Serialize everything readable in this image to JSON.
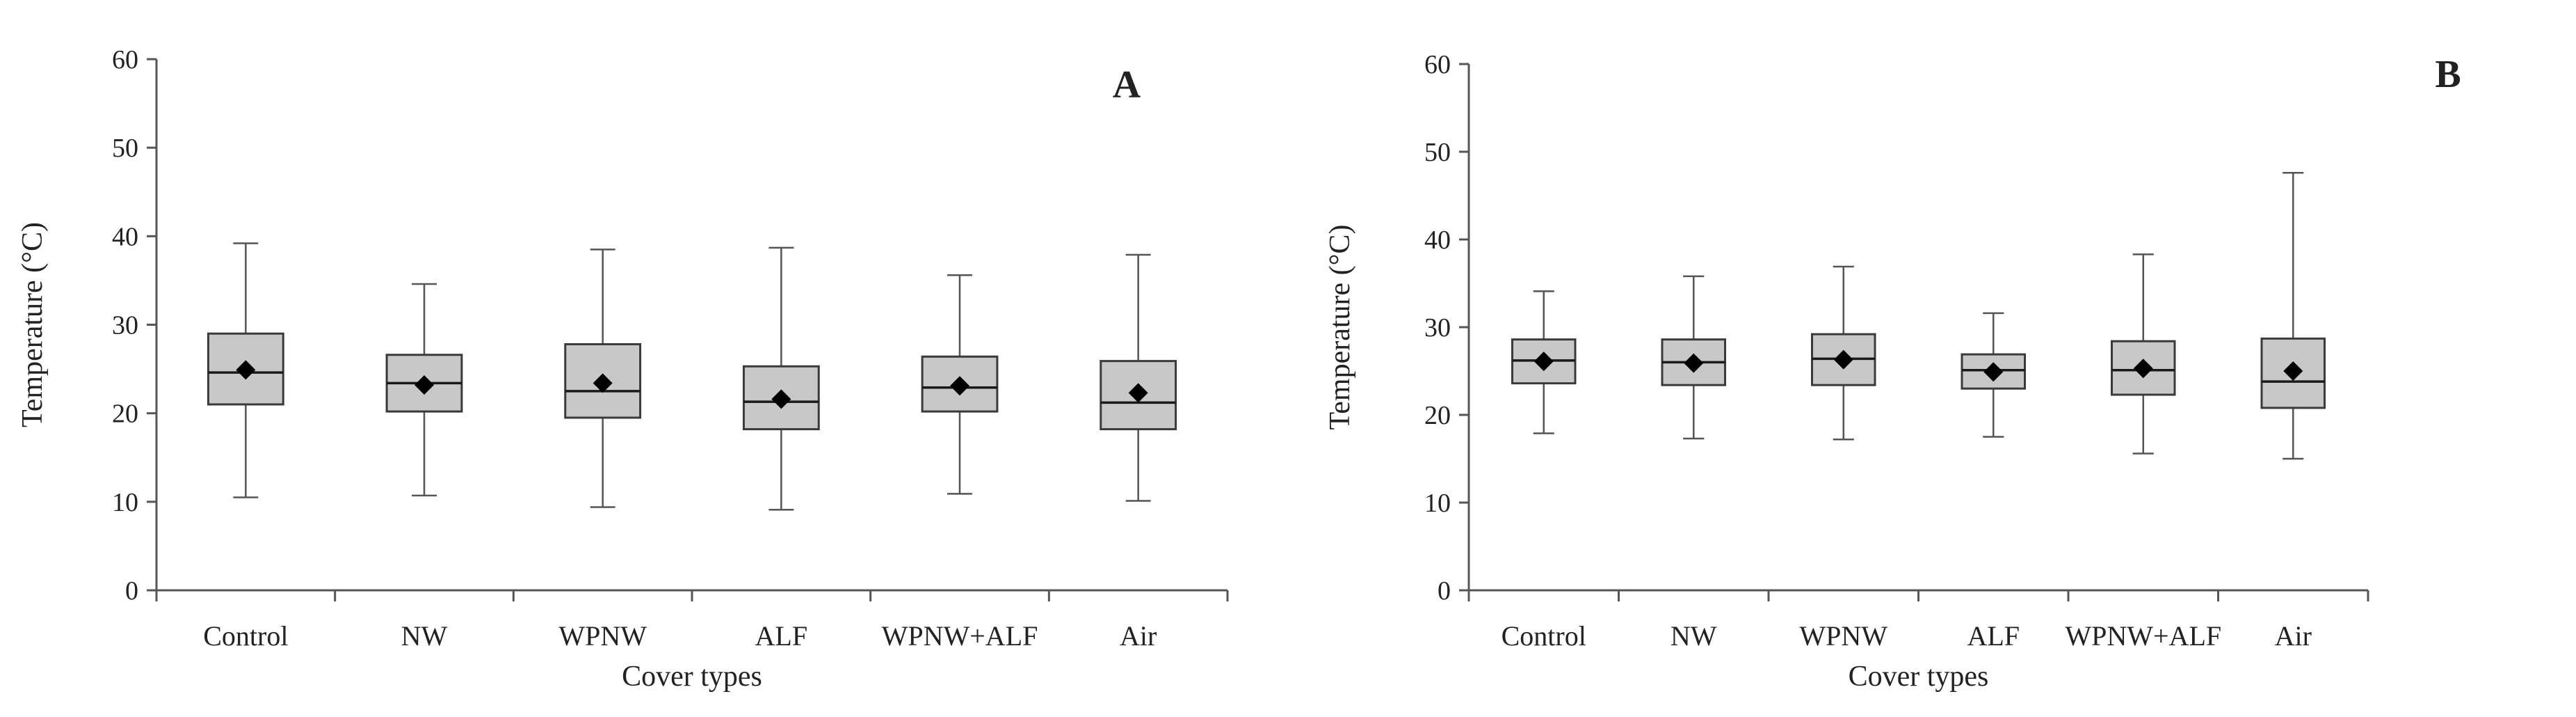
{
  "chart_data": [
    {
      "type": "box",
      "panel_label": "A",
      "xlabel": "Cover types",
      "ylabel": "Temperature (°C)",
      "ylim": [
        0,
        60
      ],
      "yticks": [
        0,
        10,
        20,
        30,
        40,
        50,
        60
      ],
      "categories": [
        "Control",
        "NW",
        "WPNW",
        "ALF",
        "WPNW+ALF",
        "Air"
      ],
      "boxes": [
        {
          "min": 10.5,
          "q1": 21,
          "median": 24.6,
          "q3": 29,
          "max": 39.2,
          "mean": 24.9
        },
        {
          "min": 10.7,
          "q1": 20.2,
          "median": 23.4,
          "q3": 26.6,
          "max": 34.6,
          "mean": 23.2
        },
        {
          "min": 9.4,
          "q1": 19.5,
          "median": 22.5,
          "q3": 27.8,
          "max": 38.5,
          "mean": 23.4
        },
        {
          "min": 9.1,
          "q1": 18.2,
          "median": 21.3,
          "q3": 25.3,
          "max": 38.7,
          "mean": 21.6
        },
        {
          "min": 10.9,
          "q1": 20.2,
          "median": 22.9,
          "q3": 26.4,
          "max": 35.6,
          "mean": 23.1
        },
        {
          "min": 10.1,
          "q1": 18.2,
          "median": 21.2,
          "q3": 25.9,
          "max": 37.9,
          "mean": 22.3
        }
      ]
    },
    {
      "type": "box",
      "panel_label": "B",
      "xlabel": "Cover types",
      "ylabel": "Temperature (°C)",
      "ylim": [
        0,
        60
      ],
      "yticks": [
        0,
        10,
        20,
        30,
        40,
        50,
        60
      ],
      "categories": [
        "Control",
        "NW",
        "WPNW",
        "ALF",
        "WPNW+ALF",
        "Air"
      ],
      "boxes": [
        {
          "min": 17.9,
          "q1": 23.6,
          "median": 26.2,
          "q3": 28.6,
          "max": 34.1,
          "mean": 26.1
        },
        {
          "min": 17.3,
          "q1": 23.4,
          "median": 26,
          "q3": 28.6,
          "max": 35.8,
          "mean": 25.9
        },
        {
          "min": 17.2,
          "q1": 23.4,
          "median": 26.4,
          "q3": 29.2,
          "max": 36.9,
          "mean": 26.3
        },
        {
          "min": 17.5,
          "q1": 23,
          "median": 25.1,
          "q3": 26.9,
          "max": 31.6,
          "mean": 24.9
        },
        {
          "min": 15.6,
          "q1": 22.3,
          "median": 25.1,
          "q3": 28.4,
          "max": 38.3,
          "mean": 25.3
        },
        {
          "min": 15,
          "q1": 20.8,
          "median": 23.8,
          "q3": 28.7,
          "max": 47.6,
          "mean": 25
        }
      ]
    }
  ],
  "colors": {
    "box_fill": "#c8c8c8",
    "stroke": "#555555",
    "mean_marker": "#000000"
  }
}
